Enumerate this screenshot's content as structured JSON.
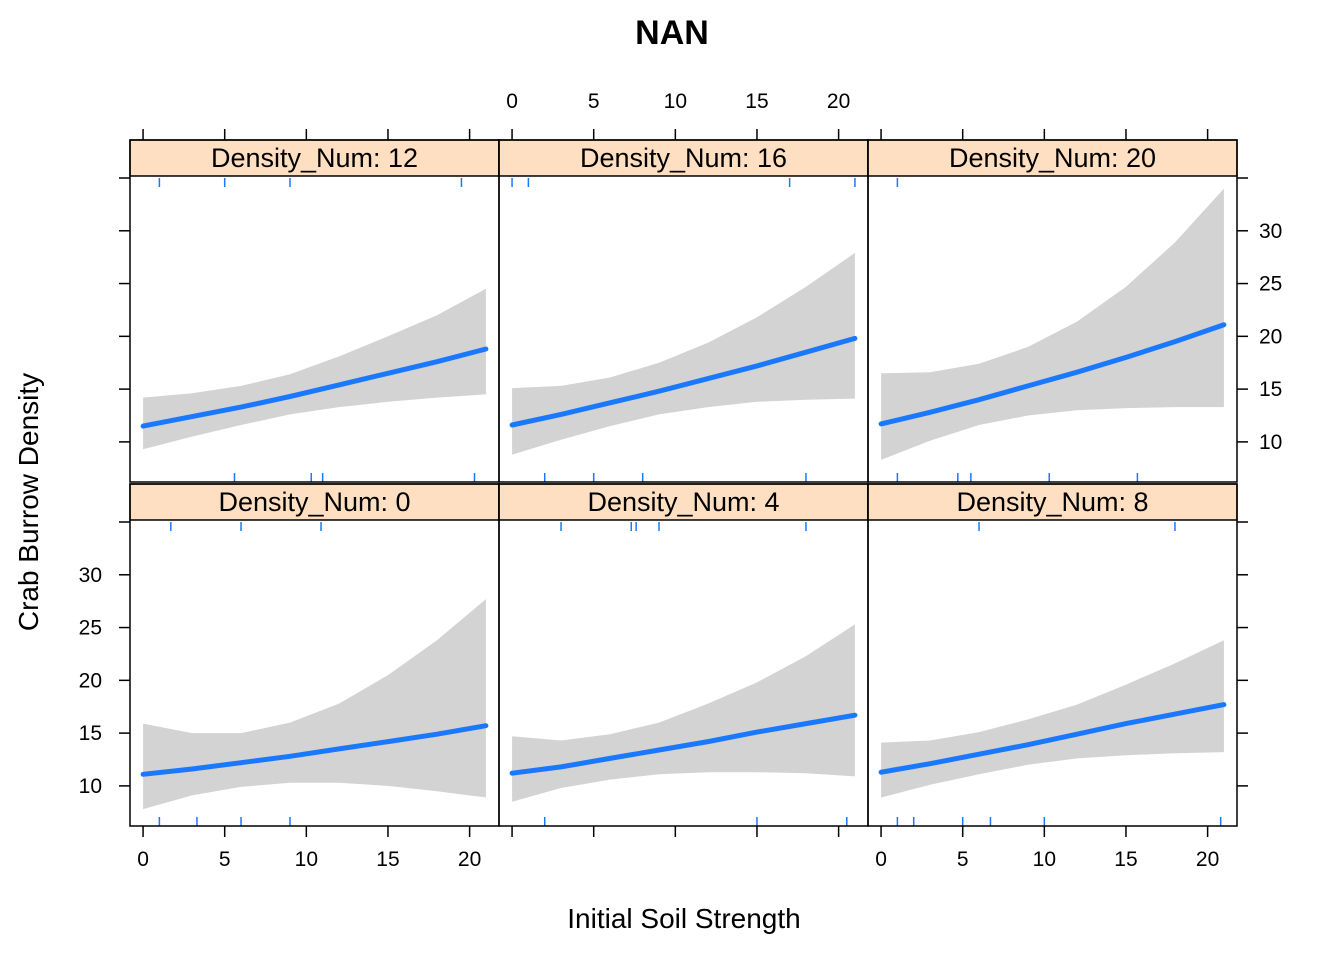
{
  "chart_data": {
    "type": "line",
    "title": "NAN",
    "xlabel": "Initial Soil Strength",
    "ylabel": "Crab Burrow Density",
    "xlim": [
      -0.8,
      21.8
    ],
    "ylim": [
      6.2,
      35.0
    ],
    "x_ticks": [
      0,
      5,
      10,
      15,
      20
    ],
    "y_ticks": [
      10,
      15,
      20,
      25,
      30
    ],
    "colors": {
      "line": "#1a78ff",
      "band": "#d3d3d3",
      "strip": "#ffdfc1",
      "rug": "#1a78ff"
    },
    "panels": [
      {
        "strip_label": "Density_Num: 0",
        "x": [
          0,
          3,
          6,
          9,
          12,
          15,
          18,
          21
        ],
        "fit": [
          11.1,
          11.6,
          12.2,
          12.8,
          13.5,
          14.2,
          14.9,
          15.7
        ],
        "lower": [
          7.8,
          9.1,
          9.9,
          10.3,
          10.3,
          10.0,
          9.5,
          8.9
        ],
        "upper": [
          15.9,
          15.0,
          15.0,
          16.0,
          17.8,
          20.5,
          23.8,
          27.7
        ],
        "rug_top": [
          1.7,
          6.0,
          10.9
        ],
        "rug_bottom": [
          1.0,
          3.3,
          6.0,
          9.0
        ]
      },
      {
        "strip_label": "Density_Num: 4",
        "x": [
          0,
          3,
          6,
          9,
          12,
          15,
          18,
          21
        ],
        "fit": [
          11.2,
          11.8,
          12.6,
          13.4,
          14.2,
          15.1,
          15.9,
          16.7
        ],
        "lower": [
          8.5,
          9.8,
          10.6,
          11.1,
          11.3,
          11.3,
          11.2,
          10.9
        ],
        "upper": [
          14.7,
          14.3,
          14.9,
          16.0,
          17.8,
          19.8,
          22.3,
          25.3
        ],
        "rug_top": [
          3.0,
          7.3,
          7.6,
          9.0,
          18.0
        ],
        "rug_bottom": [
          2.0,
          15.0,
          20.5
        ]
      },
      {
        "strip_label": "Density_Num: 8",
        "x": [
          0,
          3,
          6,
          9,
          12,
          15,
          18,
          21
        ],
        "fit": [
          11.3,
          12.1,
          13.0,
          13.9,
          14.9,
          15.9,
          16.8,
          17.7
        ],
        "lower": [
          8.9,
          10.1,
          11.1,
          12.0,
          12.6,
          12.9,
          13.1,
          13.2
        ],
        "upper": [
          14.1,
          14.3,
          15.1,
          16.3,
          17.7,
          19.6,
          21.6,
          23.8
        ],
        "rug_top": [
          6.0,
          18.0
        ],
        "rug_bottom": [
          1.0,
          2.0,
          5.0,
          6.7,
          10.0,
          20.8
        ]
      },
      {
        "strip_label": "Density_Num: 12",
        "x": [
          0,
          3,
          6,
          9,
          12,
          15,
          18,
          21
        ],
        "fit": [
          11.5,
          12.4,
          13.3,
          14.3,
          15.4,
          16.5,
          17.6,
          18.8
        ],
        "lower": [
          9.3,
          10.5,
          11.6,
          12.6,
          13.3,
          13.8,
          14.2,
          14.5
        ],
        "upper": [
          14.2,
          14.6,
          15.3,
          16.4,
          18.1,
          20.0,
          22.0,
          24.5
        ],
        "rug_top": [
          1.0,
          5.0,
          9.0,
          19.5
        ],
        "rug_bottom": [
          5.6,
          10.3,
          11.0,
          20.3
        ]
      },
      {
        "strip_label": "Density_Num: 16",
        "x": [
          0,
          3,
          6,
          9,
          12,
          15,
          18,
          21
        ],
        "fit": [
          11.6,
          12.6,
          13.7,
          14.8,
          16.0,
          17.2,
          18.5,
          19.8
        ],
        "lower": [
          8.8,
          10.2,
          11.5,
          12.6,
          13.3,
          13.8,
          14.0,
          14.1
        ],
        "upper": [
          15.1,
          15.3,
          16.1,
          17.5,
          19.4,
          21.8,
          24.7,
          27.9
        ],
        "rug_top": [
          0.0,
          1.0,
          17.0,
          21.0
        ],
        "rug_bottom": [
          2.0,
          5.0,
          8.0,
          18.0
        ]
      },
      {
        "strip_label": "Density_Num: 20",
        "x": [
          0,
          3,
          6,
          9,
          12,
          15,
          18,
          21
        ],
        "fit": [
          11.7,
          12.8,
          14.0,
          15.3,
          16.6,
          18.0,
          19.5,
          21.1
        ],
        "lower": [
          8.3,
          10.1,
          11.6,
          12.5,
          13.0,
          13.2,
          13.3,
          13.3
        ],
        "upper": [
          16.5,
          16.6,
          17.4,
          19.0,
          21.4,
          24.7,
          28.9,
          34.0
        ],
        "rug_top": [
          1.0
        ],
        "rug_bottom": [
          1.0,
          4.7,
          5.5,
          10.3,
          15.7
        ]
      }
    ]
  }
}
